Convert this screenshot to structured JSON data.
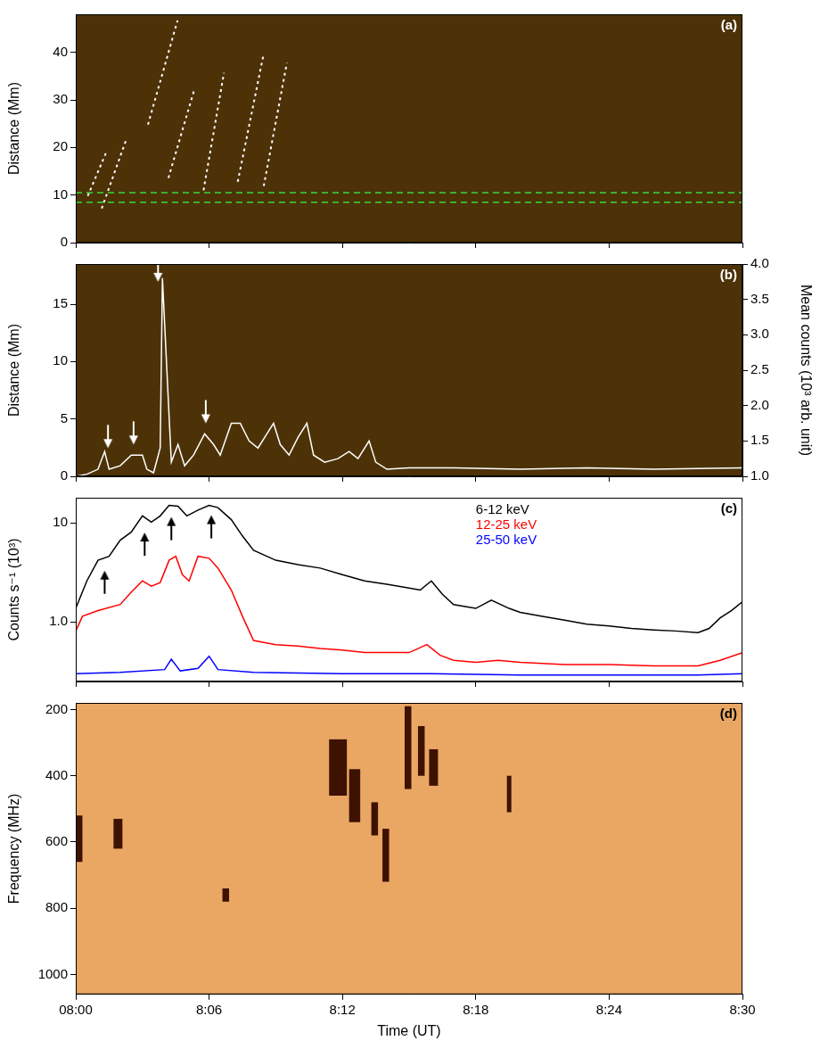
{
  "chart_data": [
    {
      "type": "line",
      "panel": "(a)",
      "ylabel": "Distance (Mm)",
      "xlim": [
        0,
        30
      ],
      "xticks": [
        {
          "value": 0,
          "label": "08:00"
        },
        {
          "value": 6,
          "label": "8:06"
        },
        {
          "value": 12,
          "label": "8:12"
        },
        {
          "value": 18,
          "label": "8:18"
        },
        {
          "value": 24,
          "label": "8:24"
        },
        {
          "value": 30,
          "label": "8:30"
        }
      ],
      "ylim": [
        0,
        48
      ],
      "yticks": [
        0,
        10,
        20,
        30,
        40
      ],
      "grid": false,
      "tick_labels": "y",
      "series": [
        {
          "color": "#ffffff",
          "line_style": "dotted",
          "x": [
            0.54,
            1.38
          ],
          "values": [
            9.8,
            19.1
          ]
        },
        {
          "color": "#ffffff",
          "line_style": "dotted",
          "x": [
            1.17,
            2.29
          ],
          "values": [
            7.2,
            21.9
          ]
        },
        {
          "color": "#ffffff",
          "line_style": "dotted",
          "x": [
            3.25,
            4.58
          ],
          "values": [
            24.8,
            46.7
          ]
        },
        {
          "color": "#ffffff",
          "line_style": "dotted",
          "x": [
            4.17,
            5.33
          ],
          "values": [
            13.6,
            32.1
          ]
        },
        {
          "color": "#ffffff",
          "line_style": "dotted",
          "x": [
            5.75,
            6.67
          ],
          "values": [
            11.0,
            35.7
          ]
        },
        {
          "color": "#ffffff",
          "line_style": "dotted",
          "x": [
            7.29,
            8.46
          ],
          "values": [
            12.8,
            39.8
          ]
        },
        {
          "color": "#ffffff",
          "line_style": "dotted",
          "x": [
            8.46,
            9.5
          ],
          "values": [
            11.9,
            37.8
          ]
        },
        {
          "color": "#33dd33",
          "line_style": "dashed",
          "x": [
            0,
            30
          ],
          "values": [
            8.5,
            8.5
          ]
        },
        {
          "color": "#33dd33",
          "line_style": "dashed",
          "x": [
            0,
            30
          ],
          "values": [
            10.5,
            10.5
          ]
        }
      ]
    },
    {
      "type": "line",
      "panel": "(b)",
      "ylabel": "Distance (Mm)",
      "y2label": "Mean counts (10³ arb. unit)",
      "xlim": [
        0,
        30
      ],
      "xticks": [
        {
          "value": 0,
          "label": "08:00"
        },
        {
          "value": 6,
          "label": "8:06"
        },
        {
          "value": 12,
          "label": "8:12"
        },
        {
          "value": 18,
          "label": "8:18"
        },
        {
          "value": 24,
          "label": "8:24"
        },
        {
          "value": 30,
          "label": "8:30"
        }
      ],
      "ylim": [
        0,
        18.5
      ],
      "yticks": [
        0,
        5,
        10,
        15
      ],
      "y2lim": [
        1.0,
        4.0
      ],
      "y2ticks": [
        {
          "value": 1.0,
          "label": "1.0"
        },
        {
          "value": 1.5,
          "label": "1.5"
        },
        {
          "value": 2.0,
          "label": "2.0"
        },
        {
          "value": 2.5,
          "label": "2.5"
        },
        {
          "value": 3.0,
          "label": "3.0"
        },
        {
          "value": 3.5,
          "label": "3.5"
        },
        {
          "value": 4.0,
          "label": "4.0"
        }
      ],
      "grid": false,
      "tick_labels": "y",
      "series": [
        {
          "color": "#ffffff",
          "axis": "y2",
          "x": [
            0,
            0.5,
            1,
            1.3,
            1.5,
            2,
            2.5,
            3,
            3.2,
            3.5,
            3.8,
            3.9,
            4.3,
            4.6,
            4.9,
            5.3,
            5.8,
            6.2,
            6.5,
            7.0,
            7.4,
            7.8,
            8.2,
            8.6,
            8.9,
            9.2,
            9.6,
            10.0,
            10.4,
            10.7,
            11.2,
            11.8,
            12.3,
            12.7,
            13.2,
            13.5,
            14,
            15,
            17,
            20,
            23,
            26,
            30
          ],
          "values": [
            1.0,
            1.03,
            1.1,
            1.35,
            1.1,
            1.15,
            1.3,
            1.3,
            1.1,
            1.05,
            1.4,
            3.8,
            1.2,
            1.45,
            1.15,
            1.3,
            1.6,
            1.45,
            1.3,
            1.75,
            1.75,
            1.5,
            1.4,
            1.6,
            1.75,
            1.45,
            1.3,
            1.55,
            1.75,
            1.3,
            1.2,
            1.25,
            1.35,
            1.25,
            1.5,
            1.2,
            1.1,
            1.12,
            1.12,
            1.1,
            1.12,
            1.1,
            1.12
          ]
        },
        {
          "type": "scatter",
          "marker": "arrow_down",
          "color": "#ffffff",
          "axis": "y2",
          "x": [
            1.45,
            2.6,
            3.7,
            5.85
          ],
          "values": [
            1.4,
            1.45,
            3.75,
            1.75
          ]
        }
      ]
    },
    {
      "type": "line",
      "panel": "(c)",
      "ylabel": "Counts s⁻¹ (10³)",
      "log": "y",
      "xlim": [
        0,
        30
      ],
      "xticks": [
        {
          "value": 0,
          "label": "08:00"
        },
        {
          "value": 6,
          "label": "8:06"
        },
        {
          "value": 12,
          "label": "8:12"
        },
        {
          "value": 18,
          "label": "8:18"
        },
        {
          "value": 24,
          "label": "8:24"
        },
        {
          "value": 30,
          "label": "8:30"
        }
      ],
      "ylim": [
        0.25,
        18
      ],
      "yticks": [
        {
          "value": 1,
          "label": "1.0"
        },
        10
      ],
      "grid": false,
      "tick_labels": "y",
      "legend": "upper right",
      "series": [
        {
          "name": "6-12 keV",
          "color": "#000000",
          "x": [
            0,
            0.5,
            1,
            1.5,
            2,
            2.5,
            3,
            3.4,
            3.8,
            4.2,
            4.6,
            5,
            5.5,
            6,
            6.4,
            7,
            7.5,
            8,
            9,
            10,
            11,
            12,
            13,
            14,
            15,
            15.5,
            16,
            16.5,
            17,
            18,
            18.7,
            19.5,
            20,
            21,
            22,
            23,
            24,
            25,
            26,
            27,
            28,
            28.5,
            29,
            29.5,
            30
          ],
          "values": [
            1.37,
            2.6,
            4.2,
            4.6,
            6.7,
            8.1,
            11.8,
            10.2,
            11.8,
            15.1,
            14.8,
            11.8,
            13.5,
            15.1,
            14.3,
            10.8,
            7.4,
            5.3,
            4.2,
            3.8,
            3.5,
            3.0,
            2.6,
            2.4,
            2.2,
            2.1,
            2.6,
            1.9,
            1.5,
            1.37,
            1.66,
            1.37,
            1.25,
            1.14,
            1.04,
            0.95,
            0.91,
            0.86,
            0.83,
            0.81,
            0.78,
            0.86,
            1.1,
            1.3,
            1.6
          ]
        },
        {
          "name": "12-25 keV",
          "color": "#ff0000",
          "x": [
            0,
            0.3,
            1,
            2,
            2.5,
            3,
            3.4,
            3.8,
            4.2,
            4.5,
            4.8,
            5.1,
            5.5,
            6,
            6.4,
            7,
            7.5,
            8,
            9,
            10,
            11,
            12,
            13,
            14,
            15,
            15.8,
            16.4,
            17,
            18,
            19,
            20,
            22,
            24,
            26,
            28,
            29,
            30
          ],
          "values": [
            0.81,
            1.14,
            1.3,
            1.5,
            2.0,
            2.6,
            2.3,
            2.5,
            4.2,
            4.6,
            3.0,
            2.6,
            4.6,
            4.4,
            3.5,
            2.1,
            1.14,
            0.65,
            0.59,
            0.57,
            0.54,
            0.52,
            0.49,
            0.49,
            0.49,
            0.59,
            0.46,
            0.41,
            0.39,
            0.41,
            0.39,
            0.37,
            0.37,
            0.36,
            0.36,
            0.41,
            0.49
          ]
        },
        {
          "name": "25-50 keV",
          "color": "#0000ff",
          "x": [
            0,
            2,
            4,
            4.3,
            4.7,
            5.5,
            6,
            6.4,
            8,
            12,
            16,
            20,
            24,
            28,
            30
          ],
          "values": [
            0.3,
            0.31,
            0.33,
            0.42,
            0.32,
            0.34,
            0.45,
            0.33,
            0.31,
            0.3,
            0.3,
            0.29,
            0.29,
            0.29,
            0.3
          ]
        },
        {
          "type": "scatter",
          "marker": "arrow_up",
          "color": "#000000",
          "x": [
            1.3,
            3.1,
            4.3,
            6.1
          ],
          "values": [
            3.3,
            8.0,
            11.5,
            12.0
          ]
        }
      ]
    },
    {
      "type": "spectrogram",
      "panel": "(d)",
      "xlabel": "Time (UT)",
      "ylabel": "Frequency (MHz)",
      "xlim": [
        0,
        30
      ],
      "xticks": [
        {
          "value": 0,
          "label": "08:00"
        },
        {
          "value": 6,
          "label": "8:06"
        },
        {
          "value": 12,
          "label": "8:12"
        },
        {
          "value": 18,
          "label": "8:18"
        },
        {
          "value": 24,
          "label": "8:24"
        },
        {
          "value": 30,
          "label": "8:30"
        }
      ],
      "ylim": [
        1060,
        180
      ],
      "yticks": [
        200,
        400,
        600,
        800,
        1000
      ],
      "grid": false,
      "bursts": [
        {
          "time": [
            0,
            0.3
          ],
          "frequency": [
            520,
            660
          ]
        },
        {
          "time": [
            1.7,
            2.1
          ],
          "frequency": [
            530,
            620
          ]
        },
        {
          "time": [
            6.6,
            6.9
          ],
          "frequency": [
            740,
            780
          ]
        },
        {
          "time": [
            11.4,
            12.2
          ],
          "frequency": [
            290,
            460
          ]
        },
        {
          "time": [
            12.3,
            12.8
          ],
          "frequency": [
            380,
            540
          ]
        },
        {
          "time": [
            13.3,
            13.6
          ],
          "frequency": [
            480,
            580
          ]
        },
        {
          "time": [
            13.8,
            14.1
          ],
          "frequency": [
            560,
            720
          ]
        },
        {
          "time": [
            14.8,
            15.1
          ],
          "frequency": [
            190,
            440
          ]
        },
        {
          "time": [
            15.4,
            15.7
          ],
          "frequency": [
            250,
            400
          ]
        },
        {
          "time": [
            15.9,
            16.3
          ],
          "frequency": [
            320,
            430
          ]
        },
        {
          "time": [
            19.4,
            19.6
          ],
          "frequency": [
            400,
            510
          ]
        }
      ]
    }
  ]
}
